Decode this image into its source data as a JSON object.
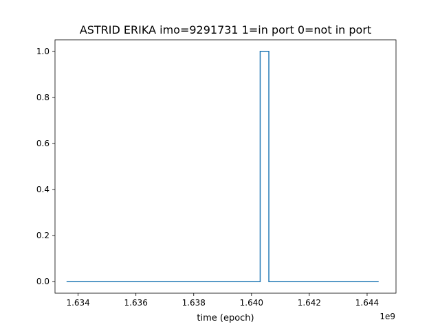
{
  "chart_data": {
    "type": "line",
    "title": "ASTRID ERIKA imo=9291731 1=in port 0=not in port",
    "xlabel": "time (epoch)",
    "ylabel": "",
    "x_offset_label": "1e9",
    "x_scale": 1000000000,
    "xlim": [
      1.6332,
      1.645
    ],
    "ylim": [
      -0.05,
      1.05
    ],
    "x_ticks": [
      1.634,
      1.636,
      1.638,
      1.64,
      1.642,
      1.644
    ],
    "x_tick_labels": [
      "1.634",
      "1.636",
      "1.638",
      "1.640",
      "1.642",
      "1.644"
    ],
    "y_ticks": [
      0.0,
      0.2,
      0.4,
      0.6,
      0.8,
      1.0
    ],
    "y_tick_labels": [
      "0.0",
      "0.2",
      "0.4",
      "0.6",
      "0.8",
      "1.0"
    ],
    "grid": false,
    "legend": "none",
    "series": [
      {
        "color": "#1f77b4",
        "points": [
          [
            1.6336,
            0
          ],
          [
            1.6403,
            0
          ],
          [
            1.6403,
            1
          ],
          [
            1.6406,
            1
          ],
          [
            1.6406,
            0
          ],
          [
            1.6444,
            0
          ]
        ]
      }
    ]
  }
}
